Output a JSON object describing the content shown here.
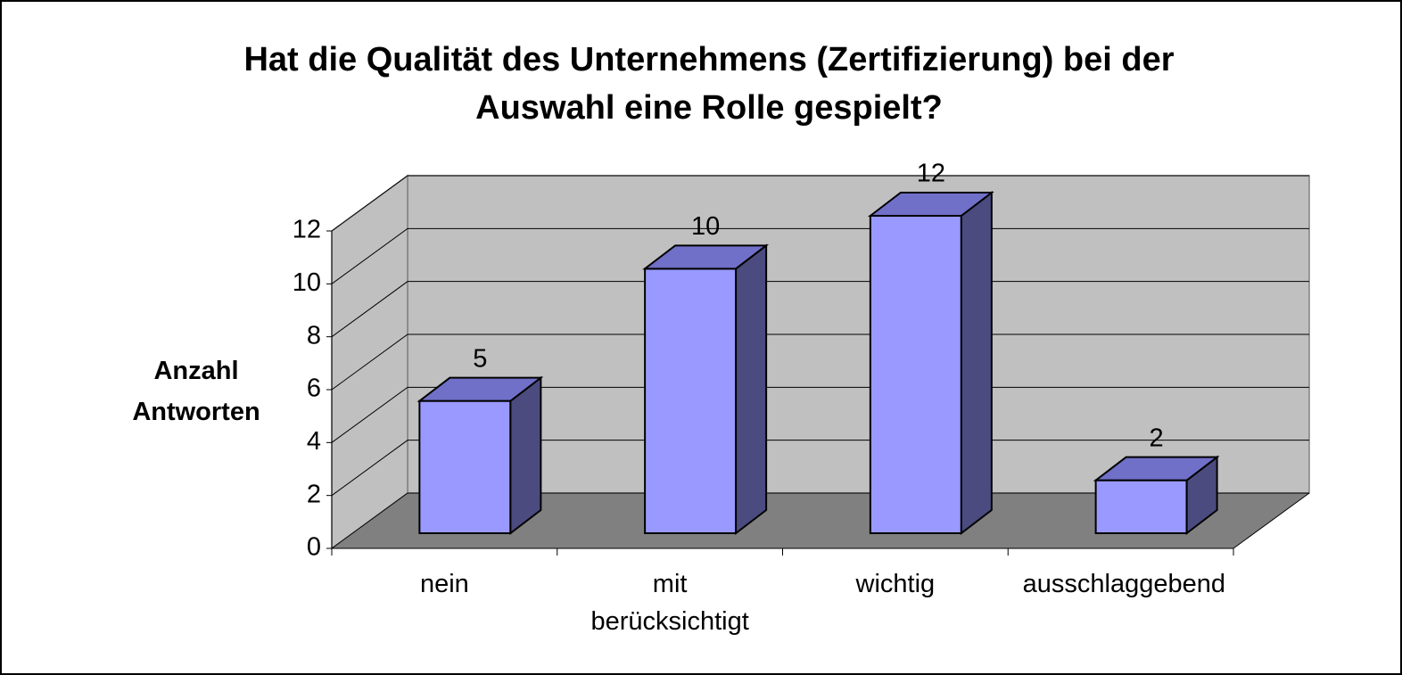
{
  "chart_data": {
    "type": "bar3d",
    "title": "Hat die Qualität des Unternehmens (Zertifizierung) bei der Auswahl eine Rolle gespielt?",
    "y_label": "Anzahl Antworten",
    "categories": [
      "nein",
      "mit berücksichtigt",
      "wichtig",
      "ausschlaggebend"
    ],
    "values": [
      5,
      10,
      12,
      2
    ],
    "color": "#9999ff",
    "ylim": [
      0,
      12
    ],
    "yticks": [
      0,
      2,
      4,
      6,
      8,
      10,
      12
    ],
    "grid": true
  }
}
